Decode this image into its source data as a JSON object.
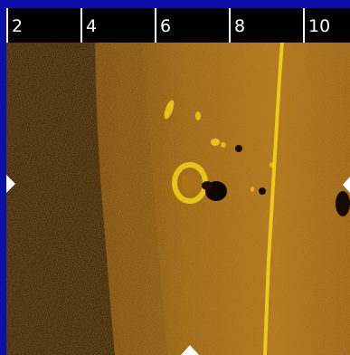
{
  "ruler": {
    "ticks": [
      "2",
      "4",
      "6",
      "8",
      "10"
    ]
  },
  "sonar_image": {
    "palette": {
      "water_column": "#2a1604",
      "seabed_dark": "#7a4a10",
      "seabed_mid": "#a0650f",
      "seabed_light": "#c48417",
      "highlight": "#f2d21a",
      "shadow": "#0e0700"
    },
    "features": [
      "vertical-bright-line",
      "ring-target",
      "shadow-blob",
      "small-returns"
    ]
  },
  "markers": [
    "left-position-marker",
    "right-position-marker",
    "bottom-position-marker"
  ]
}
